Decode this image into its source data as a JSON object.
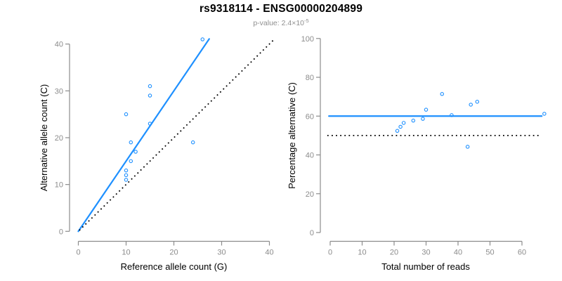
{
  "header": {
    "title": "rs9318114 - ENSG00000204899",
    "subtitle_prefix": "p-value: ",
    "subtitle_value": "2.4×10",
    "subtitle_exponent": "-5"
  },
  "colors": {
    "accent_blue": "#1E90FF",
    "dotted_black": "#000000",
    "axis_gray": "#8c8c8c",
    "tick_label_gray": "#8c8c8c",
    "title_black": "#000000",
    "subtitle_gray": "#8f8f8f"
  },
  "chart_data": [
    {
      "type": "scatter",
      "name": "allele-counts-scatter",
      "xlabel": "Reference allele count (G)",
      "ylabel": "Alternative allele count (C)",
      "xlim": [
        0,
        41.5
      ],
      "ylim": [
        0,
        41.5
      ],
      "xticks": [
        0,
        10,
        20,
        30,
        40
      ],
      "yticks": [
        0,
        10,
        20,
        30,
        40
      ],
      "grid": false,
      "legend": "none",
      "points": [
        [
          10,
          11
        ],
        [
          10,
          12
        ],
        [
          10,
          13
        ],
        [
          10,
          25
        ],
        [
          11,
          15
        ],
        [
          11,
          19
        ],
        [
          12,
          17
        ],
        [
          15,
          23
        ],
        [
          15,
          29
        ],
        [
          15,
          31
        ],
        [
          24,
          19
        ],
        [
          26,
          41
        ]
      ],
      "lines": [
        {
          "name": "fitted-line",
          "style": "solid",
          "color": "#1E90FF",
          "x1": 0,
          "y1": 0,
          "x2": 27.4,
          "y2": 41.1
        },
        {
          "name": "identity-line",
          "style": "dotted",
          "color": "#000000",
          "x1": 0.2,
          "y1": 0.2,
          "x2": 40.8,
          "y2": 40.8
        }
      ]
    },
    {
      "type": "scatter",
      "name": "percentage-vs-reads-scatter",
      "xlabel": "Total number of reads",
      "ylabel": "Percentage alternative (C)",
      "xlim": [
        0,
        67.5
      ],
      "ylim": [
        0,
        100
      ],
      "xticks": [
        0,
        10,
        20,
        30,
        40,
        50,
        60
      ],
      "yticks": [
        0,
        20,
        40,
        60,
        80,
        100
      ],
      "grid": false,
      "legend": "none",
      "points": [
        [
          21,
          52.4
        ],
        [
          22,
          54.5
        ],
        [
          23,
          56.5
        ],
        [
          26,
          57.7
        ],
        [
          29,
          58.6
        ],
        [
          30,
          63.3
        ],
        [
          35,
          71.4
        ],
        [
          38,
          60.5
        ],
        [
          43,
          44.2
        ],
        [
          44,
          65.9
        ],
        [
          46,
          67.4
        ],
        [
          67,
          61.2
        ]
      ],
      "lines": [
        {
          "name": "mean-line",
          "style": "solid",
          "color": "#1E90FF",
          "x1": -0.4,
          "y1": 60,
          "x2": 66.2,
          "y2": 60
        },
        {
          "name": "null-line",
          "style": "dotted",
          "color": "#000000",
          "x1": -0.9,
          "y1": 50,
          "x2": 65.5,
          "y2": 50
        }
      ]
    }
  ]
}
